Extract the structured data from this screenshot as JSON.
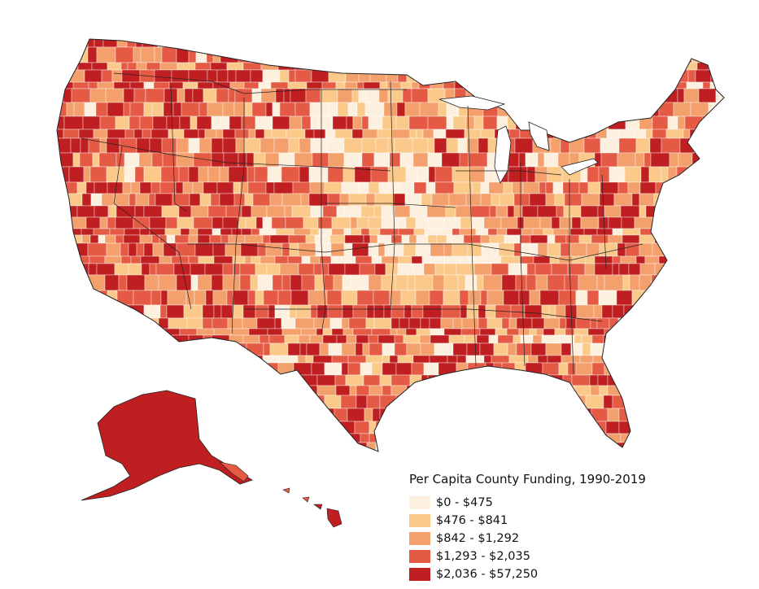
{
  "legend": {
    "title": "Per Capita County Funding, 1990-2019",
    "classes": [
      {
        "label": "$0 - $475",
        "color": "#fdf0df"
      },
      {
        "label": "$476 - $841",
        "color": "#fbc98a"
      },
      {
        "label": "$842 - $1,292",
        "color": "#f3a06c"
      },
      {
        "label": "$1,293 - $2,035",
        "color": "#e45a44"
      },
      {
        "label": "$2,036 - $57,250",
        "color": "#c01f22"
      }
    ]
  },
  "colors": {
    "state_border": "#222222",
    "county_border": "#ffffff",
    "background": "#ffffff"
  }
}
